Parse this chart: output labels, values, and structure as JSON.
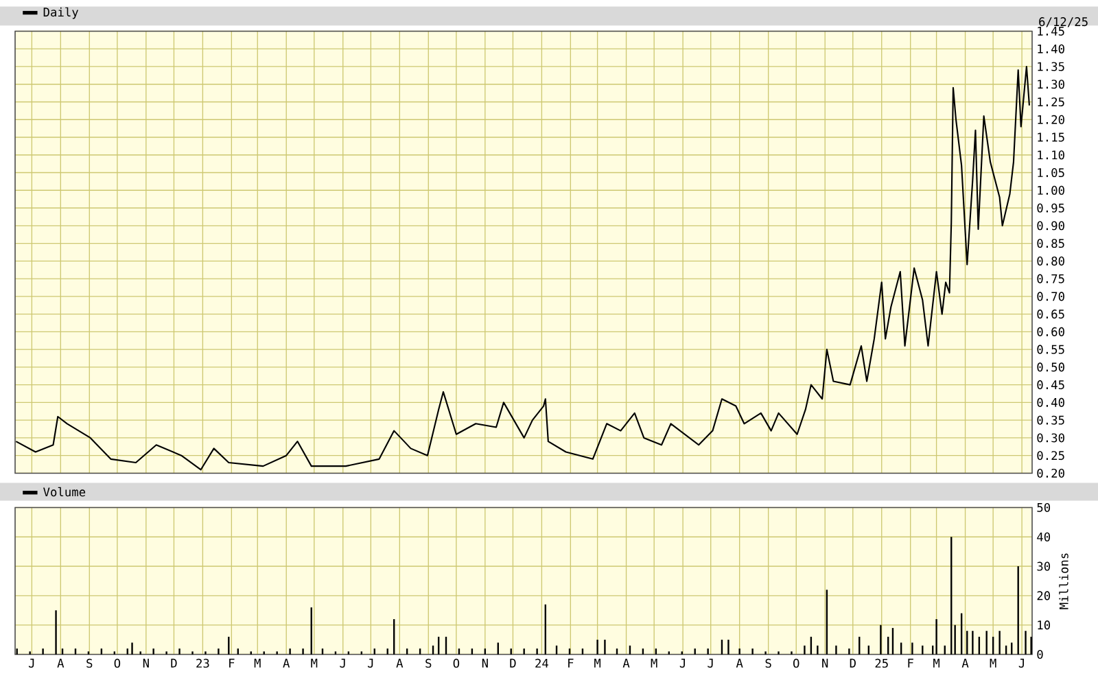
{
  "chart_data": [
    {
      "type": "line",
      "grid": true,
      "legend": "top left",
      "marker": "none",
      "tick_labels": "y",
      "annotations": [
        "6/12/25"
      ],
      "xlim": [
        "2022-06-13",
        "2025-06-12"
      ],
      "xticks": [
        {
          "value": "2022-07-01",
          "label": null
        },
        {
          "value": "2022-08-01",
          "label": null
        },
        {
          "value": "2022-09-01",
          "label": null
        },
        {
          "value": "2022-10-01",
          "label": null
        },
        {
          "value": "2022-11-01",
          "label": null
        },
        {
          "value": "2022-12-01",
          "label": null
        },
        {
          "value": "2023-01-01",
          "label": null
        },
        {
          "value": "2023-02-01",
          "label": null
        },
        {
          "value": "2023-03-01",
          "label": null
        },
        {
          "value": "2023-04-01",
          "label": null
        },
        {
          "value": "2023-05-01",
          "label": null
        },
        {
          "value": "2023-06-01",
          "label": null
        },
        {
          "value": "2023-07-01",
          "label": null
        },
        {
          "value": "2023-08-01",
          "label": null
        },
        {
          "value": "2023-09-01",
          "label": null
        },
        {
          "value": "2023-10-01",
          "label": null
        },
        {
          "value": "2023-11-01",
          "label": null
        },
        {
          "value": "2023-12-01",
          "label": null
        },
        {
          "value": "2024-01-01",
          "label": null
        },
        {
          "value": "2024-02-01",
          "label": null
        },
        {
          "value": "2024-03-01",
          "label": null
        },
        {
          "value": "2024-04-01",
          "label": null
        },
        {
          "value": "2024-05-01",
          "label": null
        },
        {
          "value": "2024-06-01",
          "label": null
        },
        {
          "value": "2024-07-01",
          "label": null
        },
        {
          "value": "2024-08-01",
          "label": null
        },
        {
          "value": "2024-09-01",
          "label": null
        },
        {
          "value": "2024-10-01",
          "label": null
        },
        {
          "value": "2024-11-01",
          "label": null
        },
        {
          "value": "2024-12-01",
          "label": null
        },
        {
          "value": "2025-01-01",
          "label": null
        },
        {
          "value": "2025-02-01",
          "label": null
        },
        {
          "value": "2025-03-01",
          "label": null
        },
        {
          "value": "2025-04-01",
          "label": null
        },
        {
          "value": "2025-05-01",
          "label": null
        },
        {
          "value": "2025-06-01",
          "label": null
        }
      ],
      "ylim": [
        0.2,
        1.45
      ],
      "yticks": [
        {
          "value": 0.2,
          "label": "0.20"
        },
        {
          "value": 0.25,
          "label": "0.25"
        },
        {
          "value": 0.3,
          "label": "0.30"
        },
        {
          "value": 0.35,
          "label": "0.35"
        },
        {
          "value": 0.4,
          "label": "0.40"
        },
        {
          "value": 0.45,
          "label": "0.45"
        },
        {
          "value": 0.5,
          "label": "0.50"
        },
        {
          "value": 0.55,
          "label": "0.55"
        },
        {
          "value": 0.6,
          "label": "0.60"
        },
        {
          "value": 0.65,
          "label": "0.65"
        },
        {
          "value": 0.7,
          "label": "0.70"
        },
        {
          "value": 0.75,
          "label": "0.75"
        },
        {
          "value": 0.8,
          "label": "0.80"
        },
        {
          "value": 0.85,
          "label": "0.85"
        },
        {
          "value": 0.9,
          "label": "0.90"
        },
        {
          "value": 0.95,
          "label": "0.95"
        },
        {
          "value": 1.0,
          "label": "1.00"
        },
        {
          "value": 1.05,
          "label": "1.05"
        },
        {
          "value": 1.1,
          "label": "1.10"
        },
        {
          "value": 1.15,
          "label": "1.15"
        },
        {
          "value": 1.2,
          "label": "1.20"
        },
        {
          "value": 1.25,
          "label": "1.25"
        },
        {
          "value": 1.3,
          "label": "1.30"
        },
        {
          "value": 1.35,
          "label": "1.35"
        },
        {
          "value": 1.4,
          "label": "1.40"
        },
        {
          "value": 1.45,
          "label": "1.45"
        }
      ],
      "series": [
        {
          "name": "Daily",
          "color": "#000000",
          "x": [
            "2022-06-14",
            "2022-07-05",
            "2022-07-24",
            "2022-07-29",
            "2022-08-08",
            "2022-09-02",
            "2022-09-24",
            "2022-10-21",
            "2022-11-12",
            "2022-12-09",
            "2022-12-30",
            "2023-01-13",
            "2023-01-29",
            "2023-03-07",
            "2023-04-01",
            "2023-04-13",
            "2023-04-28",
            "2023-06-04",
            "2023-07-10",
            "2023-07-26",
            "2023-08-13",
            "2023-08-31",
            "2023-09-12",
            "2023-09-17",
            "2023-10-01",
            "2023-10-22",
            "2023-11-13",
            "2023-11-21",
            "2023-12-13",
            "2023-12-22",
            "2024-01-03",
            "2024-01-05",
            "2024-01-08",
            "2024-01-27",
            "2024-02-25",
            "2024-03-11",
            "2024-03-26",
            "2024-04-10",
            "2024-04-20",
            "2024-05-09",
            "2024-05-19",
            "2024-06-18",
            "2024-07-03",
            "2024-07-13",
            "2024-07-28",
            "2024-08-06",
            "2024-08-24",
            "2024-09-04",
            "2024-09-12",
            "2024-10-02",
            "2024-10-11",
            "2024-10-17",
            "2024-10-29",
            "2024-11-03",
            "2024-11-10",
            "2024-11-28",
            "2024-12-10",
            "2024-12-16",
            "2024-12-24",
            "2025-01-01",
            "2025-01-05",
            "2025-01-11",
            "2025-01-21",
            "2025-01-26",
            "2025-02-05",
            "2025-02-14",
            "2025-02-20",
            "2025-03-01",
            "2025-03-07",
            "2025-03-11",
            "2025-03-15",
            "2025-03-17",
            "2025-03-19",
            "2025-03-22",
            "2025-03-28",
            "2025-04-03",
            "2025-04-09",
            "2025-04-12",
            "2025-04-15",
            "2025-04-21",
            "2025-04-28",
            "2025-05-08",
            "2025-05-11",
            "2025-05-19",
            "2025-05-23",
            "2025-05-28",
            "2025-05-31",
            "2025-06-06",
            "2025-06-09"
          ],
          "values": [
            0.29,
            0.26,
            0.28,
            0.36,
            0.34,
            0.3,
            0.24,
            0.23,
            0.28,
            0.25,
            0.21,
            0.27,
            0.23,
            0.22,
            0.25,
            0.29,
            0.22,
            0.22,
            0.24,
            0.32,
            0.27,
            0.25,
            0.38,
            0.43,
            0.31,
            0.34,
            0.33,
            0.4,
            0.3,
            0.35,
            0.39,
            0.41,
            0.29,
            0.26,
            0.24,
            0.34,
            0.32,
            0.37,
            0.3,
            0.28,
            0.34,
            0.28,
            0.32,
            0.41,
            0.39,
            0.34,
            0.37,
            0.32,
            0.37,
            0.31,
            0.38,
            0.45,
            0.41,
            0.55,
            0.46,
            0.45,
            0.56,
            0.46,
            0.58,
            0.74,
            0.58,
            0.67,
            0.77,
            0.56,
            0.78,
            0.69,
            0.56,
            0.77,
            0.65,
            0.74,
            0.71,
            0.91,
            1.29,
            1.2,
            1.07,
            0.79,
            1.03,
            1.17,
            0.89,
            1.21,
            1.08,
            0.98,
            0.9,
            0.99,
            1.08,
            1.34,
            1.18,
            1.35,
            1.24
          ]
        }
      ]
    },
    {
      "type": "bar",
      "grid": true,
      "legend": "top left",
      "ylabel": "Millions",
      "xlim": [
        "2022-06-13",
        "2025-06-12"
      ],
      "xticks": [
        {
          "value": "2022-07-01",
          "label": "J"
        },
        {
          "value": "2022-08-01",
          "label": "A"
        },
        {
          "value": "2022-09-01",
          "label": "S"
        },
        {
          "value": "2022-10-01",
          "label": "O"
        },
        {
          "value": "2022-11-01",
          "label": "N"
        },
        {
          "value": "2022-12-01",
          "label": "D"
        },
        {
          "value": "2023-01-01",
          "label": "23"
        },
        {
          "value": "2023-02-01",
          "label": "F"
        },
        {
          "value": "2023-03-01",
          "label": "M"
        },
        {
          "value": "2023-04-01",
          "label": "A"
        },
        {
          "value": "2023-05-01",
          "label": "M"
        },
        {
          "value": "2023-06-01",
          "label": "J"
        },
        {
          "value": "2023-07-01",
          "label": "J"
        },
        {
          "value": "2023-08-01",
          "label": "A"
        },
        {
          "value": "2023-09-01",
          "label": "S"
        },
        {
          "value": "2023-10-01",
          "label": "O"
        },
        {
          "value": "2023-11-01",
          "label": "N"
        },
        {
          "value": "2023-12-01",
          "label": "D"
        },
        {
          "value": "2024-01-01",
          "label": "24"
        },
        {
          "value": "2024-02-01",
          "label": "F"
        },
        {
          "value": "2024-03-01",
          "label": "M"
        },
        {
          "value": "2024-04-01",
          "label": "A"
        },
        {
          "value": "2024-05-01",
          "label": "M"
        },
        {
          "value": "2024-06-01",
          "label": "J"
        },
        {
          "value": "2024-07-01",
          "label": "J"
        },
        {
          "value": "2024-08-01",
          "label": "A"
        },
        {
          "value": "2024-09-01",
          "label": "S"
        },
        {
          "value": "2024-10-01",
          "label": "O"
        },
        {
          "value": "2024-11-01",
          "label": "N"
        },
        {
          "value": "2024-12-01",
          "label": "D"
        },
        {
          "value": "2025-01-01",
          "label": "25"
        },
        {
          "value": "2025-02-01",
          "label": "F"
        },
        {
          "value": "2025-03-01",
          "label": "M"
        },
        {
          "value": "2025-04-01",
          "label": "A"
        },
        {
          "value": "2025-05-01",
          "label": "M"
        },
        {
          "value": "2025-06-01",
          "label": "J"
        }
      ],
      "ylim": [
        0,
        50
      ],
      "yticks": [
        0,
        10,
        20,
        30,
        40,
        50
      ],
      "series": [
        {
          "name": "Volume",
          "color": "#000000",
          "x": [
            "2022-06-15",
            "2022-06-29",
            "2022-07-13",
            "2022-07-27",
            "2022-08-03",
            "2022-08-17",
            "2022-08-31",
            "2022-09-14",
            "2022-09-28",
            "2022-10-12",
            "2022-10-17",
            "2022-10-26",
            "2022-11-09",
            "2022-11-23",
            "2022-12-07",
            "2022-12-21",
            "2023-01-04",
            "2023-01-18",
            "2023-01-29",
            "2023-02-08",
            "2023-02-22",
            "2023-03-08",
            "2023-03-22",
            "2023-04-05",
            "2023-04-19",
            "2023-04-28",
            "2023-05-10",
            "2023-05-24",
            "2023-06-07",
            "2023-06-21",
            "2023-07-05",
            "2023-07-19",
            "2023-07-26",
            "2023-08-09",
            "2023-08-23",
            "2023-09-06",
            "2023-09-12",
            "2023-09-20",
            "2023-10-04",
            "2023-10-18",
            "2023-11-01",
            "2023-11-15",
            "2023-11-29",
            "2023-12-13",
            "2023-12-27",
            "2024-01-05",
            "2024-01-17",
            "2024-01-31",
            "2024-02-14",
            "2024-03-01",
            "2024-03-09",
            "2024-03-22",
            "2024-04-05",
            "2024-04-19",
            "2024-05-03",
            "2024-05-17",
            "2024-05-31",
            "2024-06-14",
            "2024-06-28",
            "2024-07-13",
            "2024-07-20",
            "2024-08-01",
            "2024-08-15",
            "2024-08-29",
            "2024-09-12",
            "2024-09-26",
            "2024-10-10",
            "2024-10-17",
            "2024-10-24",
            "2024-11-03",
            "2024-11-13",
            "2024-11-27",
            "2024-12-08",
            "2024-12-18",
            "2024-12-31",
            "2025-01-08",
            "2025-01-13",
            "2025-01-22",
            "2025-02-03",
            "2025-02-14",
            "2025-02-25",
            "2025-03-01",
            "2025-03-10",
            "2025-03-17",
            "2025-03-21",
            "2025-03-28",
            "2025-04-03",
            "2025-04-09",
            "2025-04-16",
            "2025-04-24",
            "2025-05-01",
            "2025-05-08",
            "2025-05-15",
            "2025-05-21",
            "2025-05-28",
            "2025-06-05",
            "2025-06-11"
          ],
          "values": [
            2,
            1,
            2,
            15,
            2,
            2,
            1,
            2,
            1,
            2,
            4,
            1,
            2,
            1,
            2,
            1,
            1,
            2,
            6,
            2,
            1,
            1,
            1,
            2,
            2,
            16,
            2,
            1,
            1,
            1,
            2,
            2,
            12,
            2,
            2,
            3,
            6,
            6,
            2,
            2,
            2,
            4,
            2,
            2,
            2,
            17,
            3,
            2,
            2,
            5,
            5,
            2,
            3,
            2,
            2,
            1,
            1,
            2,
            2,
            5,
            5,
            2,
            2,
            1,
            1,
            1,
            3,
            6,
            3,
            22,
            3,
            2,
            6,
            3,
            10,
            6,
            9,
            4,
            4,
            3,
            3,
            12,
            3,
            40,
            10,
            14,
            8,
            8,
            6,
            8,
            6,
            8,
            3,
            4,
            30,
            8,
            6
          ]
        }
      ]
    }
  ]
}
